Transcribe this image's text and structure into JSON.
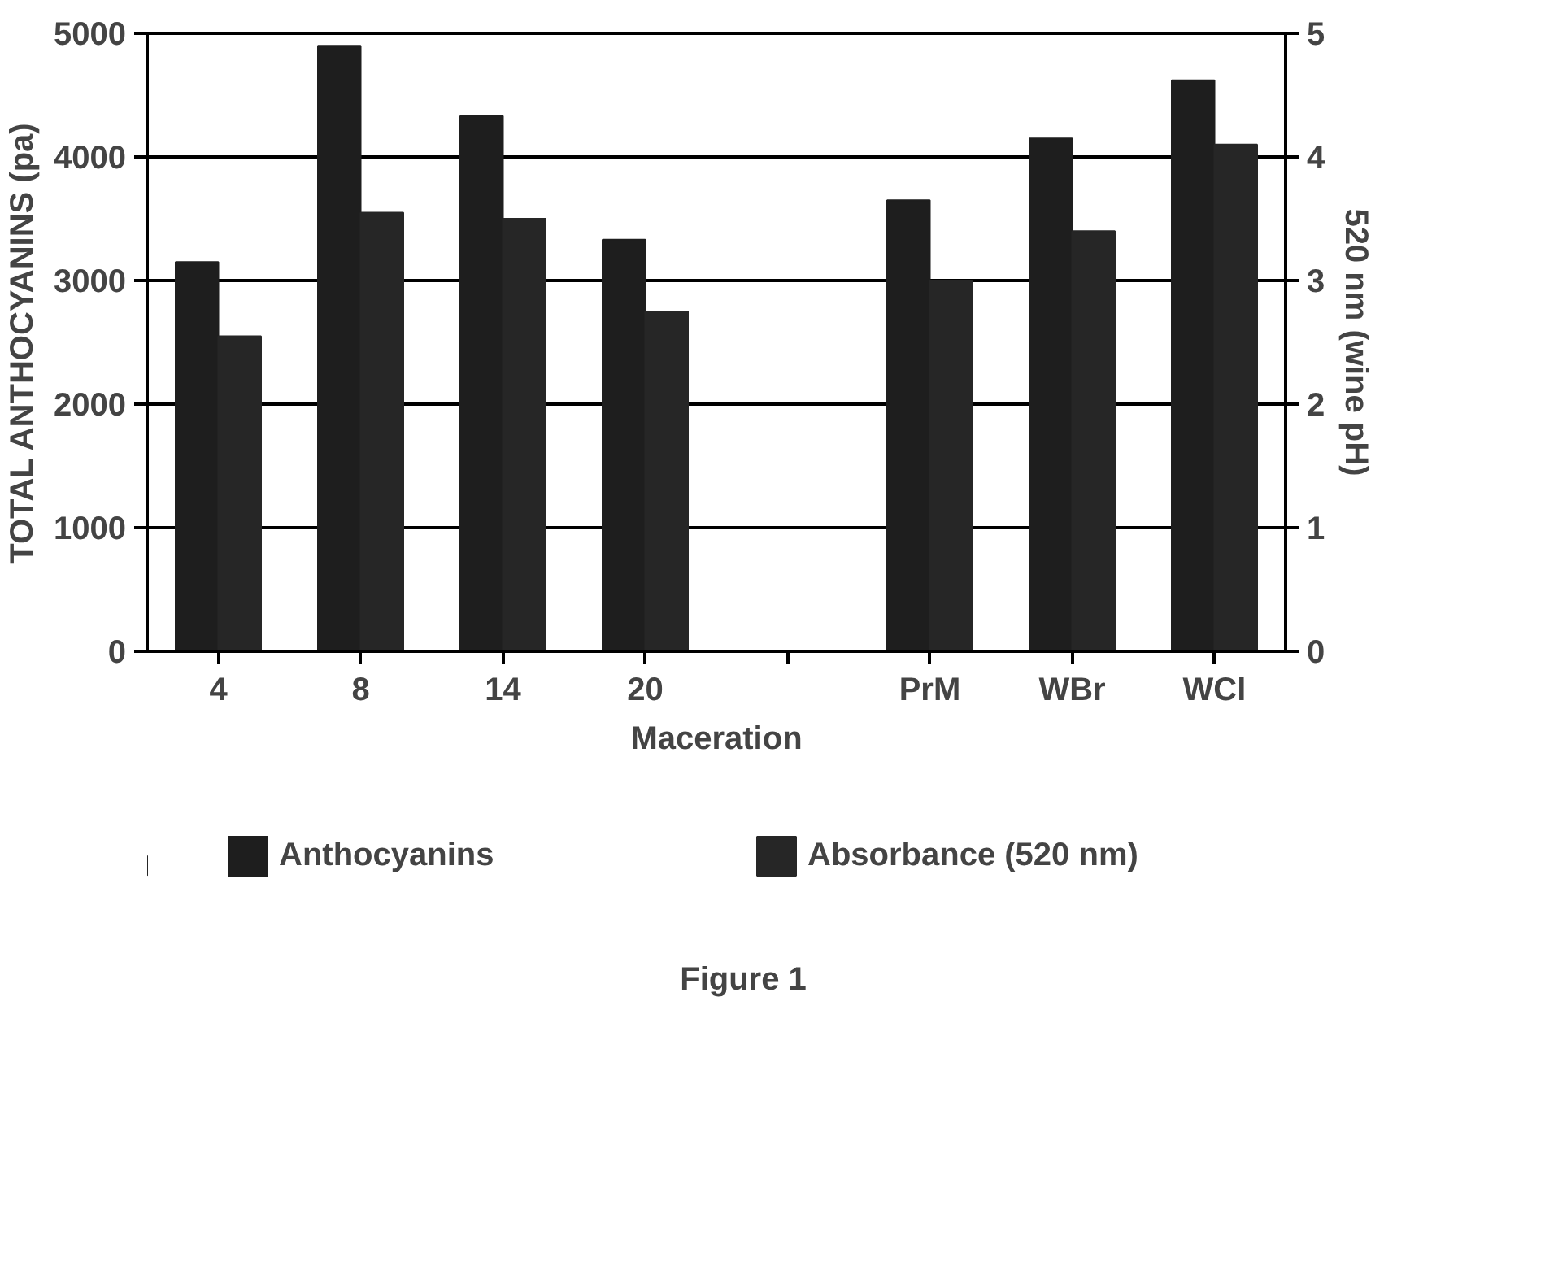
{
  "chart_data": {
    "type": "bar",
    "categories": [
      "4",
      "8",
      "14",
      "20",
      null,
      "PrM",
      "WBr",
      "WCl"
    ],
    "series": [
      {
        "name": "Anthocyanins",
        "color": "#1e1e1e",
        "values": [
          3150,
          4900,
          4330,
          3330,
          null,
          3650,
          4150,
          4620
        ]
      },
      {
        "name": "Absorbance (520 nm)",
        "color": "#262626",
        "axis": "y2",
        "values": [
          2.55,
          3.55,
          3.5,
          2.75,
          null,
          3.0,
          3.4,
          4.1
        ]
      }
    ],
    "xlabel": "Maceration",
    "ylabel": "TOTAL ANTHOCYANINS (pa)",
    "y2label": "520 nm (wine pH)",
    "ylim": [
      0,
      5000
    ],
    "yticks": [
      0,
      1000,
      2000,
      3000,
      4000,
      5000
    ],
    "y2lim": [
      0,
      5
    ],
    "y2ticks": [
      0,
      1,
      2,
      3,
      4,
      5
    ],
    "grid": "y",
    "legend": "bottom",
    "annotations": [
      "Figure 1"
    ]
  }
}
